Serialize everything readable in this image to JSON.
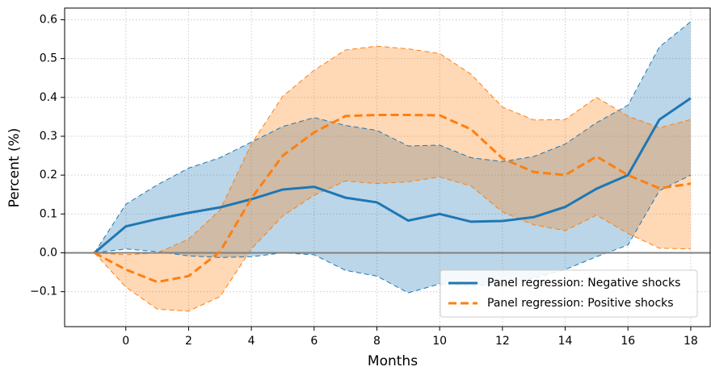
{
  "chart_data": {
    "type": "line",
    "x": [
      -1,
      0,
      1,
      2,
      3,
      4,
      5,
      6,
      7,
      8,
      9,
      10,
      11,
      12,
      13,
      14,
      15,
      16,
      17,
      18
    ],
    "series": [
      {
        "name": "Panel regression: Negative shocks",
        "color": "#1f77b4",
        "dash": "solid",
        "values": [
          0,
          0.068,
          0.087,
          0.103,
          0.117,
          0.138,
          0.163,
          0.17,
          0.142,
          0.13,
          0.083,
          0.1,
          0.08,
          0.082,
          0.092,
          0.118,
          0.165,
          0.2,
          0.343,
          0.398
        ],
        "upper": [
          0,
          0.125,
          0.175,
          0.218,
          0.245,
          0.285,
          0.325,
          0.348,
          0.328,
          0.315,
          0.275,
          0.277,
          0.245,
          0.235,
          0.248,
          0.28,
          0.335,
          0.38,
          0.53,
          0.595
        ],
        "lower": [
          0,
          0.01,
          0.003,
          -0.008,
          -0.012,
          -0.01,
          0.0,
          -0.005,
          -0.045,
          -0.06,
          -0.103,
          -0.08,
          -0.085,
          -0.08,
          -0.065,
          -0.043,
          -0.01,
          0.02,
          0.16,
          0.2
        ]
      },
      {
        "name": "Panel regression: Positive shocks",
        "color": "#ff7f0e",
        "dash": "dashed",
        "values": [
          0,
          -0.043,
          -0.075,
          -0.06,
          0.003,
          0.14,
          0.25,
          0.31,
          0.352,
          0.355,
          0.355,
          0.354,
          0.318,
          0.243,
          0.208,
          0.2,
          0.248,
          0.2,
          0.166,
          0.178
        ],
        "upper": [
          0,
          -0.005,
          0.0,
          0.035,
          0.11,
          0.28,
          0.403,
          0.47,
          0.522,
          0.532,
          0.525,
          0.513,
          0.46,
          0.375,
          0.342,
          0.343,
          0.4,
          0.352,
          0.322,
          0.343
        ],
        "lower": [
          0,
          -0.088,
          -0.145,
          -0.15,
          -0.113,
          0.01,
          0.095,
          0.148,
          0.185,
          0.178,
          0.183,
          0.195,
          0.172,
          0.105,
          0.072,
          0.057,
          0.097,
          0.05,
          0.012,
          0.01
        ]
      }
    ],
    "xlabel": "Months",
    "ylabel": "Percent (%)",
    "xlim": [
      -1.95,
      18.62
    ],
    "ylim": [
      -0.19,
      0.63
    ],
    "xticks": [
      0,
      2,
      4,
      6,
      8,
      10,
      12,
      14,
      16,
      18
    ],
    "yticks": [
      {
        "value": -0.1,
        "label": "−0.1"
      },
      {
        "value": 0,
        "label": "0.0"
      },
      0.1,
      0.2,
      0.3,
      0.4,
      0.5,
      0.6
    ],
    "hline": 0,
    "grid": true,
    "legend": "lower right"
  }
}
